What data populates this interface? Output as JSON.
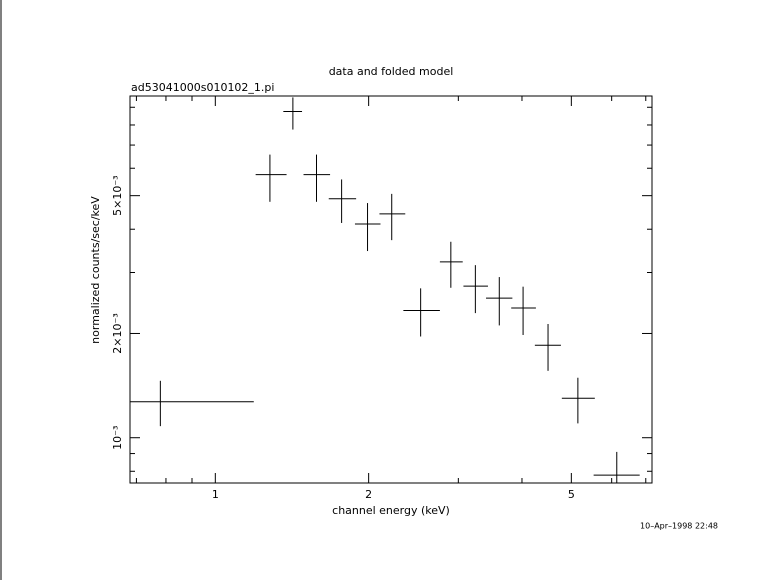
{
  "chart_data": {
    "type": "errorbar",
    "title": "data and folded model",
    "subtitle": "ad53041000s010102_1.pi",
    "x_label": "channel energy (keV)",
    "y_label": "normalized counts/sec/keV",
    "timestamp": "10–Apr–1998 22:48",
    "x_scale": "log",
    "y_scale": "log",
    "color": "#000000",
    "x": [
      0.78,
      1.28,
      1.42,
      1.58,
      1.77,
      1.99,
      2.22,
      2.53,
      2.9,
      3.24,
      3.61,
      4.02,
      4.5,
      5.15,
      6.14
    ],
    "xerr": [
      [
        0.1,
        0.41
      ],
      [
        0.08,
        0.1
      ],
      [
        0.06,
        0.06
      ],
      [
        0.09,
        0.1
      ],
      [
        0.1,
        0.12
      ],
      [
        0.11,
        0.12
      ],
      [
        0.12,
        0.14
      ],
      [
        0.19,
        0.23
      ],
      [
        0.14,
        0.16
      ],
      [
        0.17,
        0.19
      ],
      [
        0.21,
        0.22
      ],
      [
        0.21,
        0.24
      ],
      [
        0.26,
        0.27
      ],
      [
        0.36,
        0.41
      ],
      [
        0.61,
        0.67
      ]
    ],
    "values": [
      0.00127,
      0.00575,
      0.00875,
      0.00575,
      0.0049,
      0.00414,
      0.00443,
      0.00233,
      0.00322,
      0.00274,
      0.00253,
      0.00237,
      0.00185,
      0.0013,
      0.00078
    ],
    "yerr": [
      [
        0.00019,
        0.00019
      ],
      [
        0.00095,
        0.00082
      ],
      [
        0.00099,
        0.00086
      ],
      [
        0.00095,
        0.00082
      ],
      [
        0.00073,
        0.00067
      ],
      [
        0.00068,
        0.00062
      ],
      [
        0.00071,
        0.00063
      ],
      [
        0.00037,
        0.00037
      ],
      [
        0.00051,
        0.00046
      ],
      [
        0.00045,
        0.00041
      ],
      [
        0.00042,
        0.00038
      ],
      [
        0.00039,
        0.00036
      ],
      [
        0.00029,
        0.00028
      ],
      [
        0.0002,
        0.00019
      ],
      [
        0.00013,
        0.00013
      ]
    ],
    "xlim": [
      0.68,
      7.2
    ],
    "ylim": [
      0.00074,
      0.0097
    ],
    "xticks": [
      1,
      2,
      5
    ],
    "xminor": [
      0.7,
      0.8,
      0.9,
      3,
      4,
      6,
      7
    ],
    "yticks": [
      {
        "value": 0.001,
        "label": "10⁻³"
      },
      {
        "value": 0.002,
        "label": "2×10⁻³"
      },
      {
        "value": 0.005,
        "label": "5×10⁻³"
      }
    ],
    "yminor": [
      0.0008,
      0.0009,
      0.003,
      0.004,
      0.006,
      0.007,
      0.008,
      0.009
    ]
  }
}
